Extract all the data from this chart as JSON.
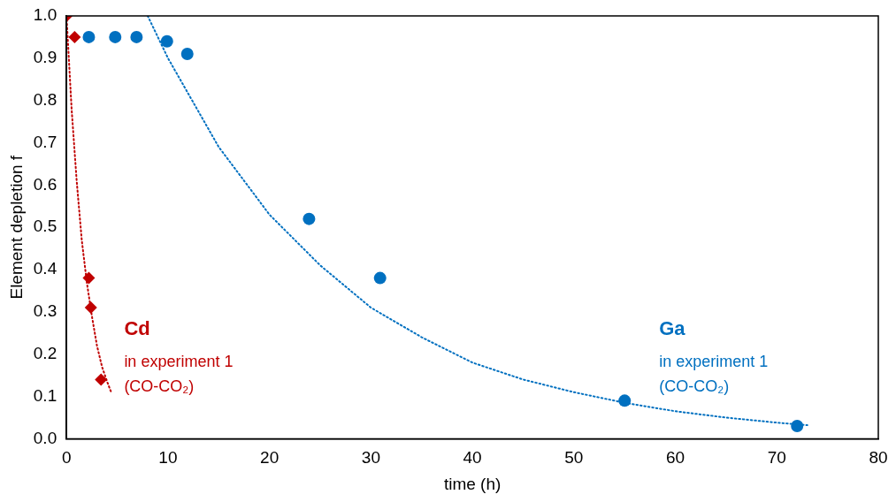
{
  "chart_data": {
    "type": "scatter",
    "xlabel": "time (h)",
    "ylabel": "Element depletion f",
    "xlim": [
      0,
      80
    ],
    "xticks": [
      0,
      10,
      20,
      30,
      40,
      50,
      60,
      70,
      80
    ],
    "ylim": [
      0,
      1
    ],
    "yticks": [
      {
        "value": 0,
        "label": "0.0"
      },
      {
        "value": 0.1,
        "label": "0.1"
      },
      {
        "value": 0.2,
        "label": "0.2"
      },
      {
        "value": 0.3,
        "label": "0.3"
      },
      {
        "value": 0.4,
        "label": "0.4"
      },
      {
        "value": 0.5,
        "label": "0.5"
      },
      {
        "value": 0.6,
        "label": "0.6"
      },
      {
        "value": 0.7,
        "label": "0.7"
      },
      {
        "value": 0.8,
        "label": "0.8"
      },
      {
        "value": 0.9,
        "label": "0.9"
      },
      {
        "value": 1,
        "label": "1.0"
      }
    ],
    "grid": false,
    "legend": false,
    "series": [
      {
        "type": "line",
        "color": "#0070c0",
        "line_style": "dotted",
        "marker": "none",
        "x": [
          8,
          10,
          15,
          20,
          25,
          30,
          35,
          40,
          45,
          50,
          55,
          60,
          65,
          70,
          73
        ],
        "values": [
          1.0,
          0.9,
          0.69,
          0.53,
          0.41,
          0.31,
          0.24,
          0.18,
          0.14,
          0.11,
          0.085,
          0.065,
          0.05,
          0.038,
          0.032
        ]
      },
      {
        "type": "line",
        "color": "#c00000",
        "line_style": "dotted",
        "marker": "none",
        "x": [
          0,
          0.5,
          1,
          1.5,
          2,
          2.5,
          3,
          3.5,
          4,
          4.4
        ],
        "values": [
          1.0,
          0.78,
          0.61,
          0.47,
          0.37,
          0.29,
          0.22,
          0.17,
          0.135,
          0.11
        ]
      },
      {
        "name": "Cd",
        "type": "scatter",
        "color": "#c00000",
        "marker": "diamond",
        "x": [
          0,
          0.8,
          2.2,
          2.4,
          3.4
        ],
        "values": [
          1.0,
          0.95,
          0.38,
          0.31,
          0.14
        ]
      },
      {
        "name": "Ga",
        "type": "scatter",
        "color": "#0070c0",
        "marker": "circle",
        "x": [
          2.2,
          4.8,
          6.9,
          9.9,
          11.9,
          23.9,
          30.9,
          55,
          72
        ],
        "values": [
          0.95,
          0.95,
          0.95,
          0.94,
          0.91,
          0.52,
          0.38,
          0.09,
          0.03
        ]
      }
    ],
    "annotations": [
      "in experiment 1\n(CO-CO₂)",
      "in experiment 1\n(CO-CO₂)"
    ]
  }
}
